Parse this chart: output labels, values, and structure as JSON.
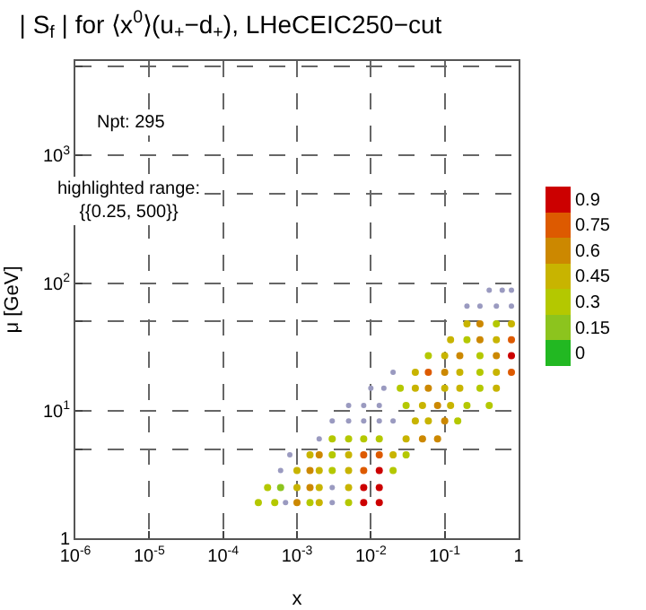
{
  "chart_data": {
    "type": "scatter",
    "title": "| S$_{f}$ | for ⟨x$^{0}$⟩(u$_{+}$−d$_{+}$), LHeCEIC250−cut",
    "xlabel": "x",
    "ylabel": "μ [GeV]",
    "log": "xy",
    "grid": true,
    "marker": "circle",
    "annotations": [
      "Npt: 295",
      "highlighted range:\n{{0.25, 500}}"
    ],
    "xlim": [
      1e-06,
      1
    ],
    "xticks": [
      {
        "value": 1e-06,
        "label": "10$^{-6}$"
      },
      {
        "value": 1e-05,
        "label": "10$^{-5}$"
      },
      {
        "value": 0.0001,
        "label": "10$^{-4}$"
      },
      {
        "value": 0.001,
        "label": "10$^{-3}$"
      },
      {
        "value": 0.01,
        "label": "10$^{-2}$"
      },
      {
        "value": 0.1,
        "label": "10$^{-1}$"
      },
      1
    ],
    "ylim": [
      1,
      5500
    ],
    "yticks": [
      1,
      {
        "value": 5,
        "label": null
      },
      {
        "value": 10,
        "label": "10$^{1}$"
      },
      {
        "value": 50,
        "label": null
      },
      {
        "value": 100,
        "label": "10$^{2}$"
      },
      {
        "value": 500,
        "label": null
      },
      {
        "value": 1000,
        "label": "10$^{3}$"
      },
      {
        "value": 5000,
        "label": null
      }
    ],
    "clim": [
      -0.075,
      0.975
    ],
    "cticks": [
      0,
      0.15,
      0.3,
      0.45,
      0.6,
      0.75,
      0.9
    ],
    "series": [
      {
        "x": [
          0.0003,
          0.0005,
          0.001,
          0.0015,
          0.002,
          0.005,
          0.008,
          0.013,
          0.0004,
          0.0006,
          0.001,
          0.0015,
          0.002,
          0.005,
          0.008,
          0.013,
          0.001,
          0.0015,
          0.002,
          0.003,
          0.005,
          0.008,
          0.013,
          0.02,
          0.0015,
          0.002,
          0.003,
          0.005,
          0.008,
          0.013,
          0.02,
          0.03,
          0.003,
          0.005,
          0.008,
          0.013,
          0.03,
          0.05,
          0.08,
          0.04,
          0.06,
          0.1,
          0.15,
          0.03,
          0.05,
          0.08,
          0.12,
          0.2,
          0.4,
          0.025,
          0.04,
          0.06,
          0.1,
          0.16,
          0.3,
          0.5,
          0.04,
          0.06,
          0.1,
          0.16,
          0.3,
          0.5,
          0.8,
          0.06,
          0.1,
          0.16,
          0.3,
          0.5,
          0.8,
          0.12,
          0.2,
          0.3,
          0.5,
          0.8,
          0.2,
          0.3,
          0.5,
          0.8
        ],
        "values": [
          1.9,
          1.9,
          1.9,
          1.9,
          1.9,
          1.9,
          1.9,
          1.9,
          2.5,
          2.5,
          2.5,
          2.5,
          2.5,
          2.5,
          2.5,
          2.5,
          3.4,
          3.4,
          3.4,
          3.4,
          3.4,
          3.4,
          3.4,
          3.4,
          4.5,
          4.5,
          4.5,
          4.5,
          4.5,
          4.5,
          4.5,
          4.5,
          6,
          6,
          6,
          6,
          6,
          6,
          6,
          8.3,
          8.3,
          8.3,
          8.3,
          11,
          11,
          11,
          11,
          11,
          11,
          15,
          15,
          15,
          15,
          15,
          15,
          15,
          20,
          20,
          20,
          20,
          20,
          20,
          20,
          27,
          27,
          27,
          27,
          27,
          27,
          36,
          36,
          36,
          36,
          36,
          48,
          48,
          48,
          48
        ],
        "colors": [
          "#b4c800",
          "#b4c800",
          "#cc8800",
          "#b4c800",
          "#c8b400",
          "#b4c800",
          "#cc0000",
          "#cc0000",
          "#b4c800",
          "#8cc41e",
          "#c8b400",
          "#cc8800",
          "#c8b400",
          "#c8b400",
          "#cc0000",
          "#cc0000",
          "#c8b400",
          "#cc8800",
          "#c8b400",
          "#b4c800",
          "#c8b400",
          "#dd5a00",
          "#cc0000",
          "#b4c800",
          "#c8b400",
          "#cc8800",
          "#b4c800",
          "#c8b400",
          "#dd5a00",
          "#dd5a00",
          "#c8b400",
          "#b4c800",
          "#b4c800",
          "#b4c800",
          "#b4c800",
          "#b4c800",
          "#c8b400",
          "#cc8800",
          "#cc8800",
          "#c8b400",
          "#c8b400",
          "#cc8800",
          "#b4c800",
          "#b4c800",
          "#c8b400",
          "#cc8800",
          "#c8b400",
          "#b4c800",
          "#b4c800",
          "#b4c800",
          "#c8b400",
          "#cc8800",
          "#c8b400",
          "#c8b400",
          "#b4c800",
          "#c8b400",
          "#c8b400",
          "#dd5a00",
          "#cc8800",
          "#c8b400",
          "#b4c800",
          "#c8b400",
          "#dd5a00",
          "#b4c800",
          "#c8b400",
          "#cc8800",
          "#b4c800",
          "#cc8800",
          "#cc0000",
          "#c8b400",
          "#b4c800",
          "#cc8800",
          "#c8b400",
          "#dd5a00",
          "#c8b400",
          "#cc8800",
          "#b4c800",
          "#c8b400"
        ]
      },
      {
        "color": "#9a9ac0",
        "x": [
          0.0007,
          0.003,
          0.003,
          0.0006,
          0.0008,
          0.002,
          0.003,
          0.005,
          0.008,
          0.013,
          0.02,
          0.005,
          0.008,
          0.013,
          0.01,
          0.015,
          0.02,
          0.2,
          0.3,
          0.5,
          0.8,
          0.4,
          0.6,
          0.8
        ],
        "values": [
          1.9,
          1.9,
          2.5,
          3.4,
          4.5,
          6,
          8.3,
          8.3,
          8.3,
          8.3,
          8.3,
          11,
          11,
          11,
          15,
          15,
          20,
          66,
          66,
          66,
          66,
          88,
          88,
          88
        ]
      }
    ]
  }
}
